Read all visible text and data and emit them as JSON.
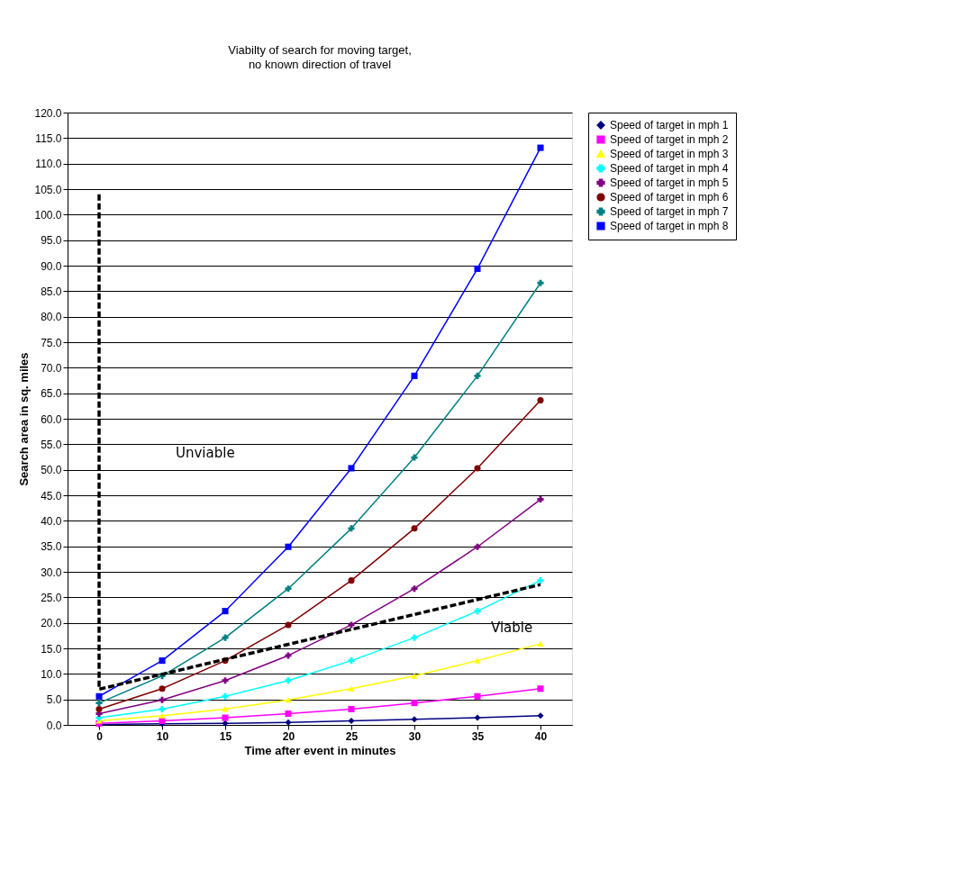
{
  "chart_data": {
    "type": "line",
    "title": "Viabilty of search for moving target,",
    "subtitle": "no known direction of travel",
    "xlabel": "Time after event in minutes",
    "ylabel": "Search area in sq. miles",
    "categories": [
      "0",
      "10",
      "15",
      "20",
      "25",
      "30",
      "35",
      "40"
    ],
    "series": [
      {
        "name": "Speed of target in mph 1",
        "color": "#000080",
        "marker": "diamond",
        "values": [
          0.1,
          0.2,
          0.3,
          0.5,
          0.8,
          1.1,
          1.4,
          1.8
        ]
      },
      {
        "name": "Speed of target in mph 2",
        "color": "#ff00ff",
        "marker": "square",
        "values": [
          0.3,
          0.8,
          1.4,
          2.2,
          3.1,
          4.3,
          5.6,
          7.1
        ]
      },
      {
        "name": "Speed of target in mph 3",
        "color": "#ffff00",
        "marker": "triangle",
        "values": [
          0.8,
          1.8,
          3.1,
          4.9,
          7.1,
          9.6,
          12.6,
          15.9
        ]
      },
      {
        "name": "Speed of target in mph 4",
        "color": "#00ffff",
        "marker": "cross",
        "values": [
          1.4,
          3.1,
          5.6,
          8.7,
          12.6,
          17.1,
          22.3,
          28.3
        ]
      },
      {
        "name": "Speed of target in mph 5",
        "color": "#800080",
        "marker": "cross",
        "values": [
          2.2,
          4.9,
          8.7,
          13.6,
          19.6,
          26.7,
          34.9,
          44.2
        ]
      },
      {
        "name": "Speed of target in mph 6",
        "color": "#800000",
        "marker": "circle",
        "values": [
          3.1,
          7.1,
          12.6,
          19.6,
          28.3,
          38.5,
          50.3,
          63.6
        ]
      },
      {
        "name": "Speed of target in mph 7",
        "color": "#008080",
        "marker": "cross",
        "values": [
          4.3,
          9.6,
          17.1,
          26.7,
          38.5,
          52.4,
          68.4,
          86.6
        ]
      },
      {
        "name": "Speed of target in mph 8",
        "color": "#0000ff",
        "marker": "square",
        "values": [
          5.6,
          12.6,
          22.3,
          34.9,
          50.3,
          68.4,
          89.4,
          113.1
        ]
      },
      {
        "type": "line",
        "color": "#000000",
        "line_style": "dashed",
        "x": [
          "0",
          "0",
          "40"
        ],
        "values": [
          104,
          7,
          27.5
        ]
      }
    ],
    "ylim": [
      0,
      120
    ],
    "yticks": [
      {
        "value": 0,
        "label": "0.0"
      },
      {
        "value": 5,
        "label": "5.0"
      },
      {
        "value": 10,
        "label": "10.0"
      },
      {
        "value": 15,
        "label": "15.0"
      },
      {
        "value": 20,
        "label": "20.0"
      },
      {
        "value": 25,
        "label": "25.0"
      },
      {
        "value": 30,
        "label": "30.0"
      },
      {
        "value": 35,
        "label": "35.0"
      },
      {
        "value": 40,
        "label": "40.0"
      },
      {
        "value": 45,
        "label": "45.0"
      },
      {
        "value": 50,
        "label": "50.0"
      },
      {
        "value": 55,
        "label": "55.0"
      },
      {
        "value": 60,
        "label": "60.0"
      },
      {
        "value": 65,
        "label": "65.0"
      },
      {
        "value": 70,
        "label": "70.0"
      },
      {
        "value": 75,
        "label": "75.0"
      },
      {
        "value": 80,
        "label": "80.0"
      },
      {
        "value": 85,
        "label": "85.0"
      },
      {
        "value": 90,
        "label": "90.0"
      },
      {
        "value": 95,
        "label": "95.0"
      },
      {
        "value": 100,
        "label": "100.0"
      },
      {
        "value": 105,
        "label": "105.0"
      },
      {
        "value": 110,
        "label": "110.0"
      },
      {
        "value": 115,
        "label": "115.0"
      },
      {
        "value": 120,
        "label": "120.0"
      }
    ],
    "annotations": [
      "Unviable",
      "Viable"
    ],
    "grid": "y",
    "legend": "right"
  }
}
